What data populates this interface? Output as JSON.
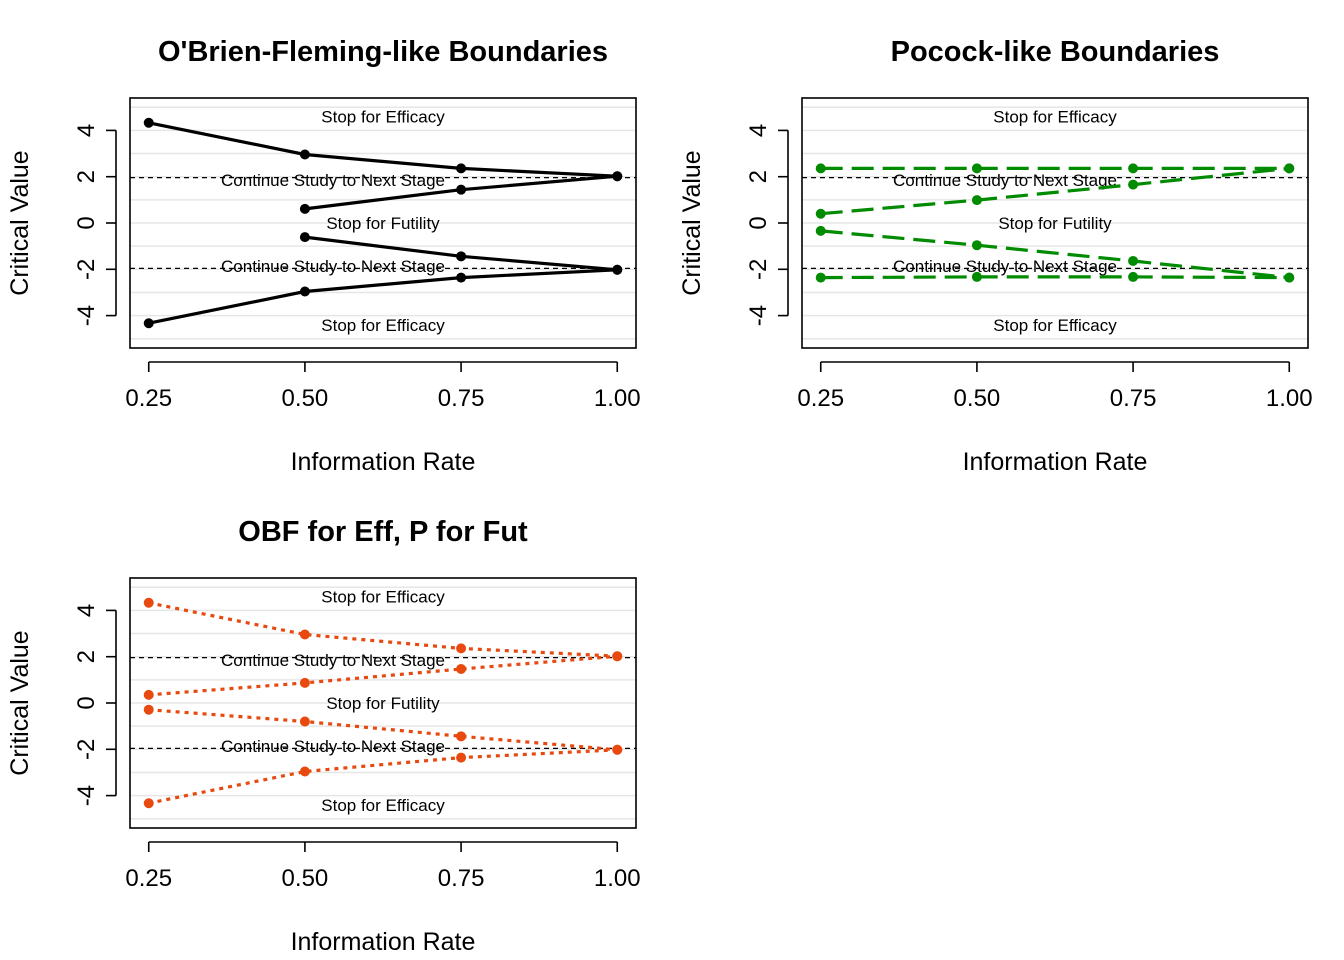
{
  "chart_data": [
    {
      "type": "line",
      "title": "O'Brien-Fleming-like Boundaries",
      "xlabel": "Information Rate",
      "ylabel": "Critical Value",
      "x": [
        0.25,
        0.5,
        0.75,
        1.0
      ],
      "x_tick_labels": [
        "0.25",
        "0.50",
        "0.75",
        "1.00"
      ],
      "y_ticks": [
        4,
        2,
        0,
        -2,
        -4
      ],
      "y_tick_labels": [
        "4",
        "2",
        "0",
        "-2",
        "-4"
      ],
      "xlim": [
        0.22,
        1.03
      ],
      "ylim": [
        -5.4,
        5.4
      ],
      "grid": true,
      "line_color": "#000000",
      "line_style": "solid",
      "critical_lines": [
        1.96,
        -1.96
      ],
      "series": [
        {
          "values": [
            4.33,
            2.96,
            2.36,
            2.02
          ]
        },
        {
          "values": [
            null,
            0.61,
            1.44,
            2.02
          ]
        },
        {
          "values": [
            null,
            -0.61,
            -1.44,
            -2.02
          ]
        },
        {
          "values": [
            -4.33,
            -2.96,
            -2.36,
            -2.02
          ]
        }
      ],
      "annotations": [
        {
          "text": "Stop for Efficacy",
          "x": 0.625,
          "y": 4.6
        },
        {
          "text": "Continue Study to Next Stage",
          "x": 0.545,
          "y": 1.85
        },
        {
          "text": "Stop for Futility",
          "x": 0.625,
          "y": 0.0
        },
        {
          "text": "Continue Study to Next Stage",
          "x": 0.545,
          "y": -1.85
        },
        {
          "text": "Stop for Efficacy",
          "x": 0.625,
          "y": -4.4
        }
      ]
    },
    {
      "type": "line",
      "title": "Pocock-like Boundaries",
      "xlabel": "Information Rate",
      "ylabel": "Critical Value",
      "x": [
        0.25,
        0.5,
        0.75,
        1.0
      ],
      "x_tick_labels": [
        "0.25",
        "0.50",
        "0.75",
        "1.00"
      ],
      "y_ticks": [
        4,
        2,
        0,
        -2,
        -4
      ],
      "y_tick_labels": [
        "4",
        "2",
        "0",
        "-2",
        "-4"
      ],
      "xlim": [
        0.22,
        1.03
      ],
      "ylim": [
        -5.4,
        5.4
      ],
      "grid": true,
      "line_color": "#008b00",
      "line_style": "dashed",
      "critical_lines": [
        1.96,
        -1.96
      ],
      "series": [
        {
          "values": [
            2.36,
            2.36,
            2.36,
            2.36
          ]
        },
        {
          "values": [
            0.4,
            0.99,
            1.66,
            2.36
          ]
        },
        {
          "values": [
            -0.34,
            -0.96,
            -1.64,
            -2.36
          ]
        },
        {
          "values": [
            -2.36,
            -2.33,
            -2.33,
            -2.36
          ]
        }
      ],
      "annotations": [
        {
          "text": "Stop for Efficacy",
          "x": 0.625,
          "y": 4.6
        },
        {
          "text": "Continue Study to Next Stage",
          "x": 0.545,
          "y": 1.85
        },
        {
          "text": "Stop for Futility",
          "x": 0.625,
          "y": 0.0
        },
        {
          "text": "Continue Study to Next Stage",
          "x": 0.545,
          "y": -1.85
        },
        {
          "text": "Stop for Efficacy",
          "x": 0.625,
          "y": -4.4
        }
      ]
    },
    {
      "type": "line",
      "title": "OBF for Eff, P for Fut",
      "xlabel": "Information Rate",
      "ylabel": "Critical Value",
      "x": [
        0.25,
        0.5,
        0.75,
        1.0
      ],
      "x_tick_labels": [
        "0.25",
        "0.50",
        "0.75",
        "1.00"
      ],
      "y_ticks": [
        4,
        2,
        0,
        -2,
        -4
      ],
      "y_tick_labels": [
        "4",
        "2",
        "0",
        "-2",
        "-4"
      ],
      "xlim": [
        0.22,
        1.03
      ],
      "ylim": [
        -5.4,
        5.4
      ],
      "grid": true,
      "line_color": "#e8490f",
      "line_style": "dotted",
      "critical_lines": [
        1.96,
        -1.96
      ],
      "series": [
        {
          "values": [
            4.33,
            2.96,
            2.36,
            2.02
          ]
        },
        {
          "values": [
            0.35,
            0.87,
            1.47,
            2.02
          ]
        },
        {
          "values": [
            -0.29,
            -0.8,
            -1.44,
            -2.02
          ]
        },
        {
          "values": [
            -4.33,
            -2.96,
            -2.36,
            -2.02
          ]
        }
      ],
      "annotations": [
        {
          "text": "Stop for Efficacy",
          "x": 0.625,
          "y": 4.6
        },
        {
          "text": "Continue Study to Next Stage",
          "x": 0.545,
          "y": 1.85
        },
        {
          "text": "Stop for Futility",
          "x": 0.625,
          "y": 0.0
        },
        {
          "text": "Continue Study to Next Stage",
          "x": 0.545,
          "y": -1.85
        },
        {
          "text": "Stop for Efficacy",
          "x": 0.625,
          "y": -4.4
        }
      ]
    }
  ]
}
